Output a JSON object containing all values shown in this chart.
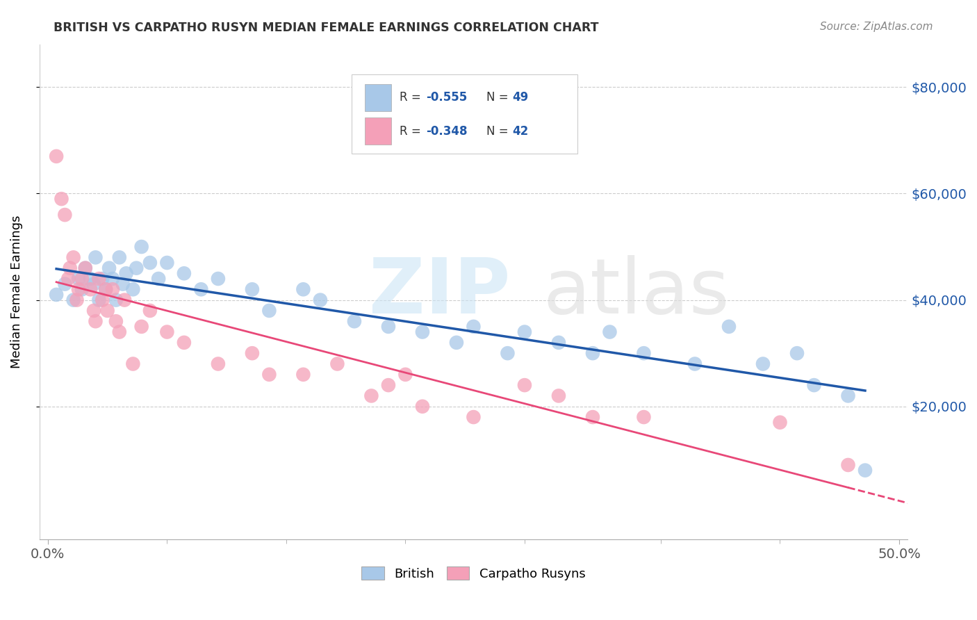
{
  "title": "BRITISH VS CARPATHO RUSYN MEDIAN FEMALE EARNINGS CORRELATION CHART",
  "source": "Source: ZipAtlas.com",
  "ylabel": "Median Female Earnings",
  "xlim": [
    -0.005,
    0.505
  ],
  "ylim": [
    -5000,
    88000
  ],
  "yticks": [
    20000,
    40000,
    60000,
    80000
  ],
  "ytick_labels": [
    "$20,000",
    "$40,000",
    "$60,000",
    "$80,000"
  ],
  "xtick_start_label": "0.0%",
  "xtick_end_label": "50.0%",
  "british_color": "#a8c8e8",
  "carpatho_color": "#f4a0b8",
  "british_line_color": "#2058a8",
  "carpatho_line_color": "#e84878",
  "british_x": [
    0.005,
    0.01,
    0.015,
    0.018,
    0.02,
    0.022,
    0.025,
    0.027,
    0.028,
    0.03,
    0.032,
    0.034,
    0.036,
    0.038,
    0.04,
    0.042,
    0.044,
    0.046,
    0.05,
    0.052,
    0.055,
    0.06,
    0.065,
    0.07,
    0.08,
    0.09,
    0.1,
    0.12,
    0.13,
    0.15,
    0.16,
    0.18,
    0.2,
    0.22,
    0.24,
    0.25,
    0.27,
    0.28,
    0.3,
    0.32,
    0.33,
    0.35,
    0.38,
    0.4,
    0.42,
    0.44,
    0.45,
    0.47,
    0.48
  ],
  "british_y": [
    41000,
    43000,
    40000,
    44000,
    42000,
    46000,
    44000,
    43000,
    48000,
    40000,
    44000,
    42000,
    46000,
    44000,
    40000,
    48000,
    43000,
    45000,
    42000,
    46000,
    50000,
    47000,
    44000,
    47000,
    45000,
    42000,
    44000,
    42000,
    38000,
    42000,
    40000,
    36000,
    35000,
    34000,
    32000,
    35000,
    30000,
    34000,
    32000,
    30000,
    34000,
    30000,
    28000,
    35000,
    28000,
    30000,
    24000,
    22000,
    8000
  ],
  "carpatho_x": [
    0.005,
    0.008,
    0.01,
    0.012,
    0.013,
    0.015,
    0.017,
    0.018,
    0.02,
    0.022,
    0.025,
    0.027,
    0.028,
    0.03,
    0.032,
    0.034,
    0.035,
    0.038,
    0.04,
    0.042,
    0.045,
    0.05,
    0.055,
    0.06,
    0.07,
    0.08,
    0.1,
    0.12,
    0.13,
    0.15,
    0.17,
    0.19,
    0.2,
    0.21,
    0.22,
    0.25,
    0.28,
    0.3,
    0.32,
    0.35,
    0.43,
    0.47
  ],
  "carpatho_y": [
    67000,
    59000,
    56000,
    44000,
    46000,
    48000,
    40000,
    42000,
    44000,
    46000,
    42000,
    38000,
    36000,
    44000,
    40000,
    42000,
    38000,
    42000,
    36000,
    34000,
    40000,
    28000,
    35000,
    38000,
    34000,
    32000,
    28000,
    30000,
    26000,
    26000,
    28000,
    22000,
    24000,
    26000,
    20000,
    18000,
    24000,
    22000,
    18000,
    18000,
    17000,
    9000
  ]
}
